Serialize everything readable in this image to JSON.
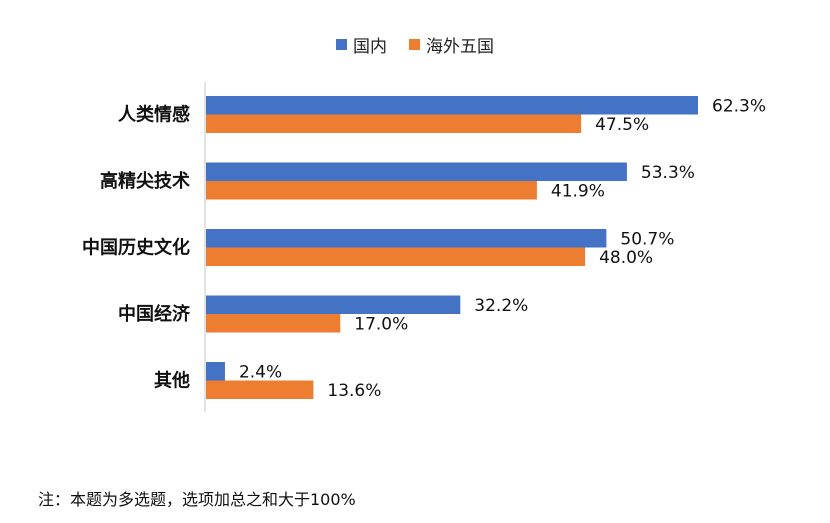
{
  "chart_data": {
    "type": "bar",
    "orientation": "horizontal",
    "categories": [
      "人类情感",
      "高精尖技术",
      "中国历史文化",
      "中国经济",
      "其他"
    ],
    "series": [
      {
        "name": "国内",
        "values": [
          62.3,
          53.3,
          50.7,
          32.2,
          2.4
        ],
        "labels": [
          "62.3%",
          "53.3%",
          "50.7%",
          "32.2%",
          "2.4%"
        ],
        "color": "#4472C4"
      },
      {
        "name": "海外五国",
        "values": [
          47.5,
          41.9,
          48.0,
          17.0,
          13.6
        ],
        "labels": [
          "47.5%",
          "41.9%",
          "48.0%",
          "17.0%",
          "13.6%"
        ],
        "color": "#ED7D31"
      }
    ],
    "xlim": [
      0,
      68
    ],
    "legend_position": "top-center",
    "grid": false
  },
  "note": "注：本题为多选题，选项加总之和大于100%"
}
